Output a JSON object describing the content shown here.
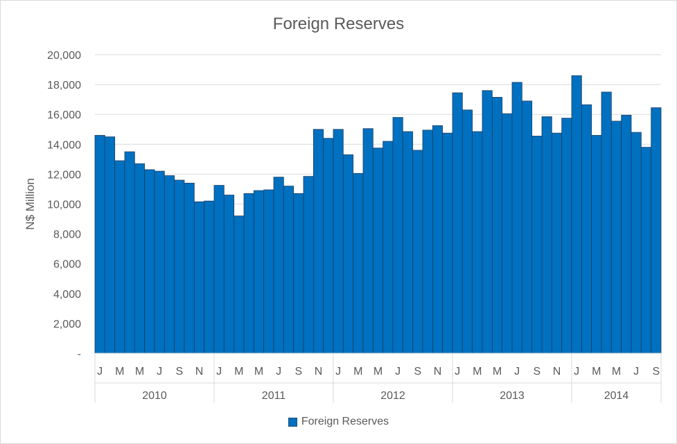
{
  "chart_data": {
    "type": "bar",
    "title": "Foreign Reserves",
    "xlabel": "",
    "ylabel": "N$ Million",
    "ylim": [
      0,
      20000
    ],
    "yticks": [
      "-",
      "2,000",
      "4,000",
      "6,000",
      "8,000",
      "10,000",
      "12,000",
      "14,000",
      "16,000",
      "18,000",
      "20,000"
    ],
    "ytick_values": [
      0,
      2000,
      4000,
      6000,
      8000,
      10000,
      12000,
      14000,
      16000,
      18000,
      20000
    ],
    "grid": true,
    "legend": "bottom",
    "series": [
      {
        "name": "Foreign Reserves",
        "color": "#0070c0",
        "values": [
          14600,
          14500,
          12900,
          13500,
          12700,
          12300,
          12200,
          11900,
          11600,
          11400,
          10150,
          10200,
          11250,
          10600,
          9200,
          10700,
          10900,
          10950,
          11800,
          11200,
          10700,
          11850,
          15000,
          14400,
          15000,
          13300,
          12050,
          15050,
          13750,
          14200,
          15800,
          14850,
          13600,
          14950,
          15250,
          14750,
          17450,
          16300,
          14850,
          17600,
          17150,
          16050,
          18150,
          16900,
          14550,
          15850,
          14750,
          15750,
          18600,
          16650,
          14600,
          17500,
          15550,
          15950,
          14800,
          13800,
          16450
        ]
      }
    ],
    "month_labels": [
      "J",
      "M",
      "M",
      "J",
      "S",
      "N"
    ],
    "years": [
      "2010",
      "2011",
      "2012",
      "2013",
      "2014"
    ]
  }
}
